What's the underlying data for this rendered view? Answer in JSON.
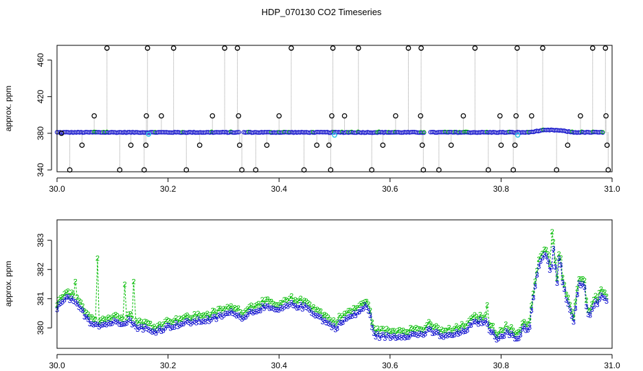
{
  "title": "HDP_070130  CO2 Timeseries",
  "colors": {
    "series2": "#00bb00",
    "series3": "#0000cc",
    "spike": "#000000",
    "base_raw": "#1a1acc",
    "highlight": "#2ec4e6",
    "vline": "#999999"
  },
  "chart_data": [
    {
      "type": "scatter",
      "xlabel": "",
      "ylabel": "approx. ppm",
      "xlim": [
        30.0,
        31.0
      ],
      "ylim": [
        338,
        476
      ],
      "x_ticks": [
        "30.0",
        "30.2",
        "30.4",
        "30.6",
        "30.8",
        "31.0"
      ],
      "y_ticks": [
        "340",
        "380",
        "420",
        "460"
      ],
      "base_level": 381,
      "gaps": [
        [
          30.328,
          30.336
        ],
        [
          30.662,
          30.67
        ]
      ],
      "bump": {
        "from": 30.85,
        "to": 30.93,
        "peak": 383.5
      },
      "highlight_points": [
        [
          30.165,
          379
        ],
        [
          30.5,
          378
        ],
        [
          30.83,
          378
        ]
      ],
      "spikes": [
        {
          "x": 30.008,
          "y": 380
        },
        {
          "x": 30.023,
          "y": 340
        },
        {
          "x": 30.045,
          "y": 367
        },
        {
          "x": 30.067,
          "y": 399
        },
        {
          "x": 30.09,
          "y": 473
        },
        {
          "x": 30.113,
          "y": 340
        },
        {
          "x": 30.133,
          "y": 367
        },
        {
          "x": 30.157,
          "y": 340
        },
        {
          "x": 30.16,
          "y": 367
        },
        {
          "x": 30.161,
          "y": 399
        },
        {
          "x": 30.163,
          "y": 473
        },
        {
          "x": 30.188,
          "y": 399
        },
        {
          "x": 30.21,
          "y": 473
        },
        {
          "x": 30.233,
          "y": 340
        },
        {
          "x": 30.257,
          "y": 367
        },
        {
          "x": 30.28,
          "y": 399
        },
        {
          "x": 30.302,
          "y": 473
        },
        {
          "x": 30.325,
          "y": 473
        },
        {
          "x": 30.327,
          "y": 399
        },
        {
          "x": 30.329,
          "y": 367
        },
        {
          "x": 30.333,
          "y": 340
        },
        {
          "x": 30.358,
          "y": 340
        },
        {
          "x": 30.378,
          "y": 367
        },
        {
          "x": 30.4,
          "y": 399
        },
        {
          "x": 30.422,
          "y": 473
        },
        {
          "x": 30.445,
          "y": 340
        },
        {
          "x": 30.468,
          "y": 367
        },
        {
          "x": 30.49,
          "y": 367
        },
        {
          "x": 30.493,
          "y": 340
        },
        {
          "x": 30.495,
          "y": 399
        },
        {
          "x": 30.497,
          "y": 473
        },
        {
          "x": 30.518,
          "y": 399
        },
        {
          "x": 30.543,
          "y": 473
        },
        {
          "x": 30.567,
          "y": 340
        },
        {
          "x": 30.587,
          "y": 367
        },
        {
          "x": 30.61,
          "y": 399
        },
        {
          "x": 30.633,
          "y": 473
        },
        {
          "x": 30.655,
          "y": 399
        },
        {
          "x": 30.656,
          "y": 473
        },
        {
          "x": 30.658,
          "y": 367
        },
        {
          "x": 30.66,
          "y": 340
        },
        {
          "x": 30.688,
          "y": 340
        },
        {
          "x": 30.71,
          "y": 367
        },
        {
          "x": 30.732,
          "y": 399
        },
        {
          "x": 30.753,
          "y": 473
        },
        {
          "x": 30.777,
          "y": 340
        },
        {
          "x": 30.798,
          "y": 399
        },
        {
          "x": 30.8,
          "y": 367
        },
        {
          "x": 30.822,
          "y": 340
        },
        {
          "x": 30.825,
          "y": 367
        },
        {
          "x": 30.827,
          "y": 399
        },
        {
          "x": 30.829,
          "y": 473
        },
        {
          "x": 30.855,
          "y": 399
        },
        {
          "x": 30.875,
          "y": 473
        },
        {
          "x": 30.9,
          "y": 340
        },
        {
          "x": 30.92,
          "y": 367
        },
        {
          "x": 30.943,
          "y": 399
        },
        {
          "x": 30.965,
          "y": 473
        },
        {
          "x": 30.988,
          "y": 473
        },
        {
          "x": 30.989,
          "y": 399
        },
        {
          "x": 30.991,
          "y": 367
        },
        {
          "x": 30.993,
          "y": 340
        }
      ]
    },
    {
      "type": "line",
      "xlabel": "",
      "ylabel": "approx. ppm",
      "xlim": [
        30.0,
        31.0
      ],
      "ylim": [
        379.3,
        383.7
      ],
      "x_ticks": [
        "30.0",
        "30.2",
        "30.4",
        "30.6",
        "30.8",
        "31.0"
      ],
      "y_ticks": [
        "380",
        "381",
        "382",
        "383"
      ],
      "markers": [
        "2",
        "3"
      ],
      "anchors3": [
        [
          30.0,
          380.7
        ],
        [
          30.02,
          381.05
        ],
        [
          30.04,
          380.7
        ],
        [
          30.05,
          380.45
        ],
        [
          30.06,
          380.2
        ],
        [
          30.08,
          380.1
        ],
        [
          30.1,
          380.2
        ],
        [
          30.12,
          380.2
        ],
        [
          30.13,
          380.3
        ],
        [
          30.14,
          380.05
        ],
        [
          30.16,
          380.0
        ],
        [
          30.17,
          379.85
        ],
        [
          30.2,
          380.05
        ],
        [
          30.24,
          380.2
        ],
        [
          30.28,
          380.3
        ],
        [
          30.3,
          380.45
        ],
        [
          30.32,
          380.55
        ],
        [
          30.33,
          380.35
        ],
        [
          30.35,
          380.55
        ],
        [
          30.37,
          380.7
        ],
        [
          30.4,
          380.6
        ],
        [
          30.42,
          380.8
        ],
        [
          30.45,
          380.7
        ],
        [
          30.47,
          380.4
        ],
        [
          30.5,
          380.0
        ],
        [
          30.52,
          380.3
        ],
        [
          30.54,
          380.5
        ],
        [
          30.555,
          380.75
        ],
        [
          30.565,
          380.45
        ],
        [
          30.57,
          379.75
        ],
        [
          30.6,
          379.7
        ],
        [
          30.63,
          379.75
        ],
        [
          30.66,
          379.8
        ],
        [
          30.67,
          379.9
        ],
        [
          30.7,
          379.7
        ],
        [
          30.73,
          379.85
        ],
        [
          30.75,
          380.15
        ],
        [
          30.77,
          380.25
        ],
        [
          30.79,
          379.65
        ],
        [
          30.81,
          379.85
        ],
        [
          30.83,
          379.6
        ],
        [
          30.84,
          380.05
        ],
        [
          30.85,
          379.9
        ],
        [
          30.86,
          381.3
        ],
        [
          30.87,
          382.3
        ],
        [
          30.88,
          382.5
        ],
        [
          30.89,
          381.9
        ],
        [
          30.895,
          382.9
        ],
        [
          30.9,
          381.3
        ],
        [
          30.905,
          382.6
        ],
        [
          30.91,
          381.6
        ],
        [
          30.92,
          380.8
        ],
        [
          30.93,
          380.2
        ],
        [
          30.94,
          381.6
        ],
        [
          30.95,
          381.4
        ],
        [
          30.955,
          380.6
        ],
        [
          30.96,
          380.4
        ],
        [
          30.97,
          381.0
        ],
        [
          30.975,
          380.8
        ],
        [
          30.98,
          381.1
        ],
        [
          30.99,
          381.0
        ]
      ],
      "spikes2": [
        {
          "x": 30.073,
          "y": 382.4
        },
        {
          "x": 30.122,
          "y": 381.5
        },
        {
          "x": 30.138,
          "y": 381.6
        },
        {
          "x": 30.033,
          "y": 381.6
        },
        {
          "x": 30.775,
          "y": 380.8
        },
        {
          "x": 30.555,
          "y": 380.9
        },
        {
          "x": 30.892,
          "y": 383.3
        }
      ]
    }
  ]
}
